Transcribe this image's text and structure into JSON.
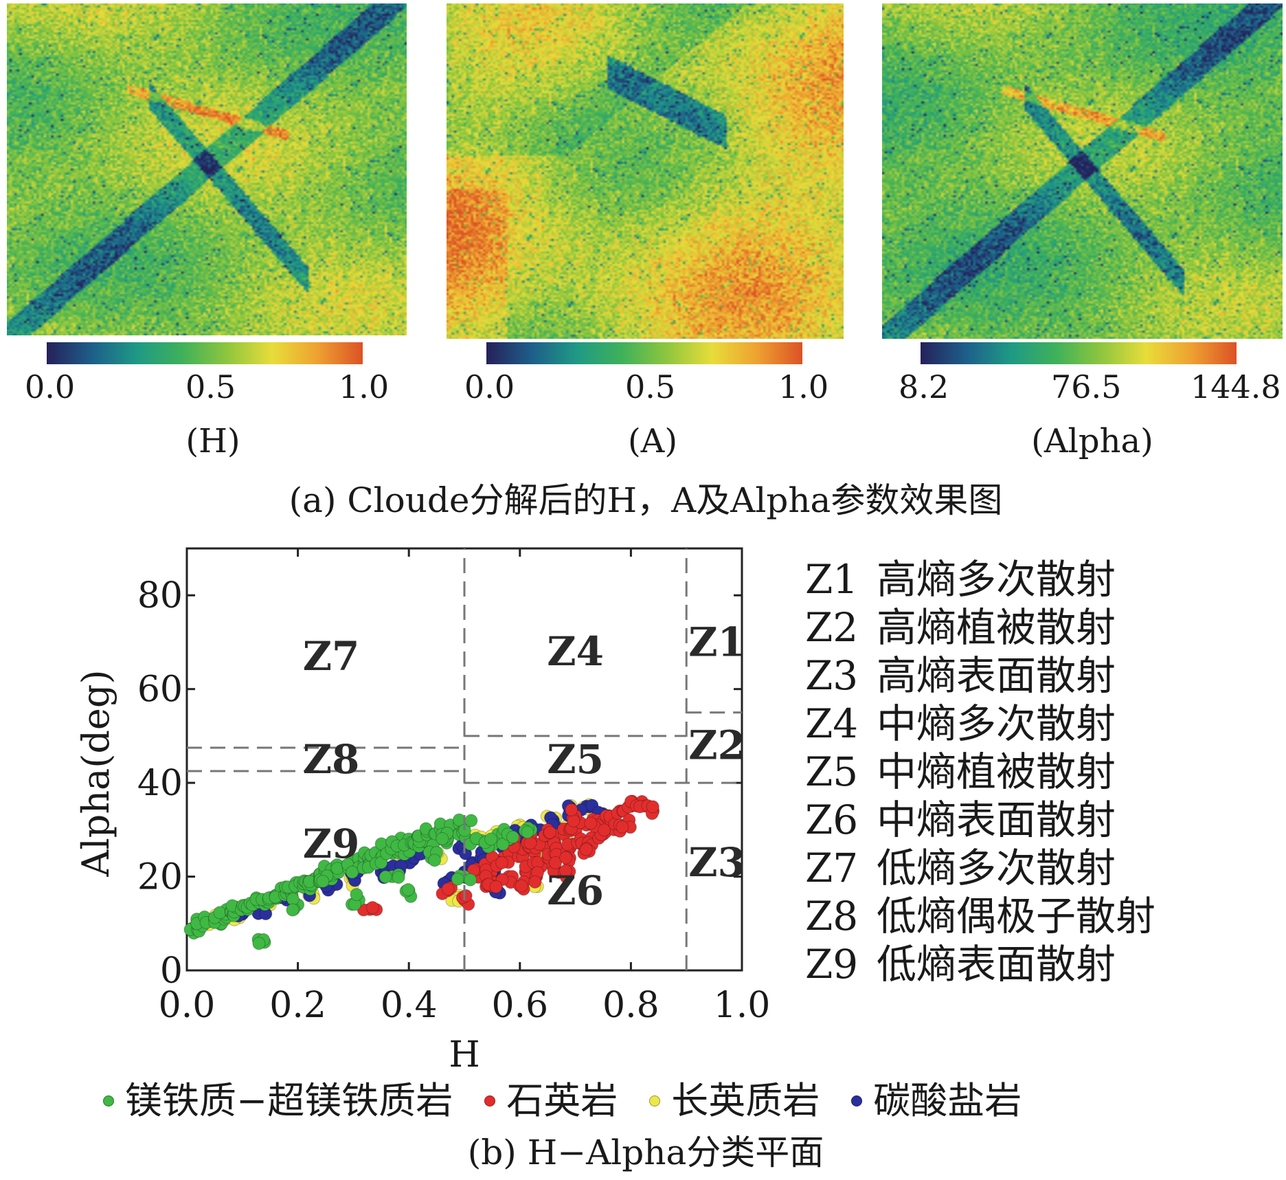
{
  "colors": {
    "colormap": [
      "#25225a",
      "#1d5f8a",
      "#1f9a85",
      "#3fb15a",
      "#8fc63e",
      "#e8dd3a",
      "#eea231",
      "#dc5325"
    ],
    "green": "#3fb844",
    "red": "#e22d2d",
    "yellow": "#ece84a",
    "blue": "#2b2f9c",
    "dash": "#777777"
  },
  "maps": [
    {
      "label": "(H)",
      "ticks": [
        "0.0",
        "0.5",
        "1.0"
      ],
      "scene": "H"
    },
    {
      "label": "(A)",
      "ticks": [
        "0.0",
        "0.5",
        "1.0"
      ],
      "scene": "A"
    },
    {
      "label": "(Alpha)",
      "ticks": [
        "8.2",
        "76.5",
        "144.8"
      ],
      "scene": "Alpha"
    }
  ],
  "captions": {
    "a": "(a) Cloude分解后的H，A及Alpha参数效果图",
    "b": "(b) H−Alpha分类平面"
  },
  "zone_descriptions": [
    {
      "code": "Z1",
      "text": "高熵多次散射"
    },
    {
      "code": "Z2",
      "text": "高熵植被散射"
    },
    {
      "code": "Z3",
      "text": "高熵表面散射"
    },
    {
      "code": "Z4",
      "text": "中熵多次散射"
    },
    {
      "code": "Z5",
      "text": "中熵植被散射"
    },
    {
      "code": "Z6",
      "text": "中熵表面散射"
    },
    {
      "code": "Z7",
      "text": "低熵多次散射"
    },
    {
      "code": "Z8",
      "text": "低熵偶极子散射"
    },
    {
      "code": "Z9",
      "text": "低熵表面散射"
    }
  ],
  "chart_data": {
    "type": "scatter",
    "xlabel": "H",
    "ylabel": "Alpha(deg)",
    "xlim": [
      0,
      1.0
    ],
    "ylim": [
      0,
      90
    ],
    "x_ticks": [
      "0.0",
      "0.2",
      "0.4",
      "0.6",
      "0.8",
      "1.0"
    ],
    "y_ticks": [
      "0",
      "20",
      "40",
      "60",
      "80"
    ],
    "grid": false,
    "legend_position": "bottom",
    "boundaries": [
      {
        "x": [
          0.5,
          0.5
        ],
        "y": [
          0,
          90
        ]
      },
      {
        "x": [
          0.9,
          0.9
        ],
        "y": [
          0,
          90
        ]
      },
      {
        "x": [
          0.0,
          0.5
        ],
        "y": [
          47.5,
          47.5
        ]
      },
      {
        "x": [
          0.0,
          0.5
        ],
        "y": [
          42.5,
          42.5
        ]
      },
      {
        "x": [
          0.5,
          0.9
        ],
        "y": [
          50,
          50
        ]
      },
      {
        "x": [
          0.5,
          1.0
        ],
        "y": [
          40,
          40
        ]
      },
      {
        "x": [
          0.9,
          1.0
        ],
        "y": [
          55,
          55
        ]
      }
    ],
    "zone_labels": [
      {
        "text": "Z7",
        "x": 0.26,
        "y": 67
      },
      {
        "text": "Z8",
        "x": 0.26,
        "y": 45
      },
      {
        "text": "Z9",
        "x": 0.26,
        "y": 27
      },
      {
        "text": "Z4",
        "x": 0.7,
        "y": 68
      },
      {
        "text": "Z5",
        "x": 0.7,
        "y": 45
      },
      {
        "text": "Z6",
        "x": 0.7,
        "y": 17
      },
      {
        "text": "Z1",
        "x": 0.955,
        "y": 70
      },
      {
        "text": "Z2",
        "x": 0.955,
        "y": 48
      },
      {
        "text": "Z3",
        "x": 0.955,
        "y": 23
      }
    ],
    "series": [
      {
        "name": "镁铁质−超镁铁质岩",
        "color": "#3fb844",
        "x": [
          0.01,
          0.02,
          0.03,
          0.04,
          0.05,
          0.06,
          0.07,
          0.08,
          0.09,
          0.1,
          0.11,
          0.12,
          0.13,
          0.14,
          0.15,
          0.16,
          0.17,
          0.18,
          0.19,
          0.2,
          0.21,
          0.22,
          0.23,
          0.24,
          0.25,
          0.26,
          0.27,
          0.28,
          0.29,
          0.3,
          0.31,
          0.32,
          0.33,
          0.34,
          0.35,
          0.36,
          0.37,
          0.38,
          0.39,
          0.4,
          0.41,
          0.42,
          0.43,
          0.44,
          0.45,
          0.46,
          0.47,
          0.48,
          0.49,
          0.5,
          0.52,
          0.54,
          0.56,
          0.58,
          0.62,
          0.14,
          0.24,
          0.4,
          0.46,
          0.31,
          0.37,
          0.44,
          0.5,
          0.2
        ],
        "y": [
          9,
          9.5,
          10,
          10.5,
          11,
          11.5,
          12,
          12.5,
          13,
          13.5,
          13,
          14,
          14.5,
          15,
          15.5,
          16,
          16.5,
          17,
          17.5,
          18,
          18.5,
          19,
          19.5,
          20,
          20.5,
          21,
          21.5,
          22,
          22.5,
          23,
          22,
          24,
          23,
          25,
          24,
          26,
          25,
          27,
          26,
          28,
          27,
          28.5,
          27.5,
          29,
          28,
          30,
          28,
          30.5,
          29,
          31,
          28,
          27,
          29,
          28,
          30,
          6,
          19,
          17,
          29,
          15,
          20,
          24,
          20,
          14
        ]
      },
      {
        "name": "石英岩",
        "color": "#e22d2d",
        "x": [
          0.52,
          0.54,
          0.55,
          0.57,
          0.58,
          0.6,
          0.61,
          0.62,
          0.63,
          0.64,
          0.65,
          0.66,
          0.67,
          0.68,
          0.69,
          0.7,
          0.71,
          0.72,
          0.73,
          0.74,
          0.75,
          0.76,
          0.77,
          0.78,
          0.79,
          0.8,
          0.82,
          0.84,
          0.6,
          0.63,
          0.66,
          0.69,
          0.72,
          0.56,
          0.59,
          0.65,
          0.7,
          0.74,
          0.68,
          0.62,
          0.33,
          0.47,
          0.5,
          0.55
        ],
        "y": [
          21,
          22,
          19,
          24,
          20,
          25,
          21,
          26,
          23,
          27,
          24,
          28,
          25,
          29,
          26,
          30,
          27,
          31,
          28,
          32,
          29,
          33,
          30,
          34,
          31,
          35,
          36,
          34,
          18,
          20,
          22,
          24,
          26,
          23,
          27,
          30,
          33,
          31,
          21,
          28,
          13,
          17,
          15,
          18
        ]
      },
      {
        "name": "长英质岩",
        "color": "#ece84a",
        "x": [
          0.03,
          0.06,
          0.09,
          0.1,
          0.15,
          0.22,
          0.3,
          0.38,
          0.45,
          0.49,
          0.53,
          0.58,
          0.62,
          0.66,
          0.7,
          0.72,
          0.6,
          0.56,
          0.68,
          0.64
        ],
        "y": [
          10,
          11,
          12,
          13,
          14,
          16,
          19,
          22,
          25,
          16,
          28,
          27,
          19,
          32,
          34,
          35,
          31,
          29,
          30,
          24
        ]
      },
      {
        "name": "碳酸盐岩",
        "color": "#2b2f9c",
        "x": [
          0.1,
          0.13,
          0.18,
          0.22,
          0.26,
          0.3,
          0.35,
          0.4,
          0.43,
          0.46,
          0.49,
          0.51,
          0.53,
          0.55,
          0.58,
          0.6,
          0.63,
          0.66,
          0.69,
          0.72,
          0.75,
          0.47,
          0.5,
          0.56,
          0.38
        ],
        "y": [
          12,
          13,
          15,
          17,
          18,
          20,
          21,
          24,
          26,
          28,
          26,
          22,
          24,
          20,
          27,
          29,
          30,
          32,
          34,
          35,
          33,
          19,
          21,
          17,
          22
        ]
      }
    ]
  }
}
